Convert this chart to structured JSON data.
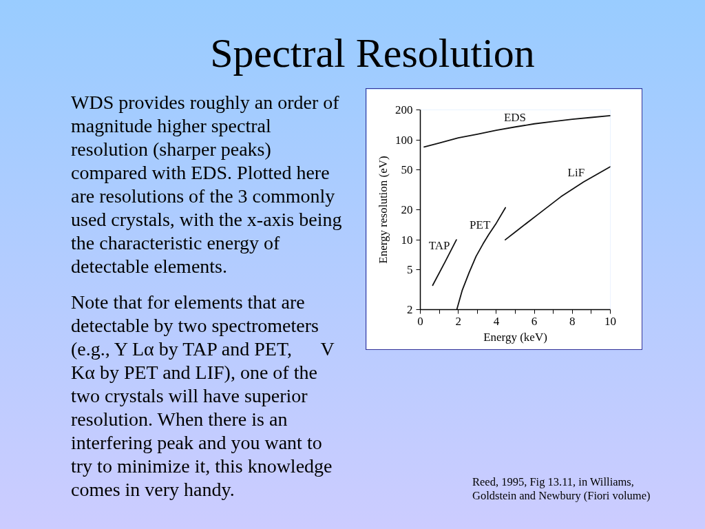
{
  "chart_data": {
    "type": "line",
    "title": "Spectral Resolution",
    "xlabel": "Energy (keV)",
    "ylabel": "Energy resolution (eV)",
    "annotations": [
      "WDS provides roughly an order of magnitude higher spectral resolution (sharper peaks) compared with EDS. Plotted here are resolutions of the 3 commonly used crystals, with the x-axis being the characteristic energy of detectable elements.",
      "Note that for elements that are detectable by two spectrometers (e.g., Y Lα by TAP and PET,      V Kα by PET and LIF), one of the two crystals will have superior resolution. When there is an interfering peak and you want to try to minimize it, this knowledge comes in very handy.",
      "Reed, 1995, Fig 13.11, in Williams, Goldstein and Newbury (Fiori volume)"
    ],
    "series": [
      {
        "name": "EDS",
        "color": "#111111",
        "x": [
          0.2,
          1,
          2,
          3,
          4,
          5,
          6,
          7,
          8,
          9,
          10
        ],
        "values": [
          85,
          93,
          105,
          114,
          125,
          135,
          145,
          153,
          161,
          168,
          175
        ]
      },
      {
        "name": "TAP",
        "color": "#111111",
        "x": [
          0.65,
          1.3,
          1.9
        ],
        "values": [
          3.5,
          6,
          10
        ]
      },
      {
        "name": "PET",
        "color": "#111111",
        "x": [
          1.92,
          2.2,
          2.57,
          2.93,
          3.3,
          3.6,
          4.0,
          4.48
        ],
        "values": [
          2,
          3.1,
          4.7,
          6.8,
          9.1,
          11.3,
          14.7,
          21
        ]
      },
      {
        "name": "LiF",
        "color": "#111111",
        "x": [
          4.47,
          5,
          6.2,
          7.4,
          8.6,
          10
        ],
        "values": [
          10,
          12,
          18,
          27,
          38,
          54
        ]
      }
    ],
    "xlim": [
      0,
      10
    ],
    "ylim": [
      2,
      200
    ],
    "xticks": [
      0,
      {
        "value": 1,
        "label": null
      },
      2,
      {
        "value": 3,
        "label": null
      },
      4,
      {
        "value": 5,
        "label": null
      },
      6,
      {
        "value": 7,
        "label": null
      },
      8,
      {
        "value": 9,
        "label": null
      },
      10
    ],
    "yticks": [
      2,
      5,
      10,
      20,
      50,
      100,
      200
    ],
    "log": "y",
    "grid": false,
    "line_style": "solid"
  }
}
